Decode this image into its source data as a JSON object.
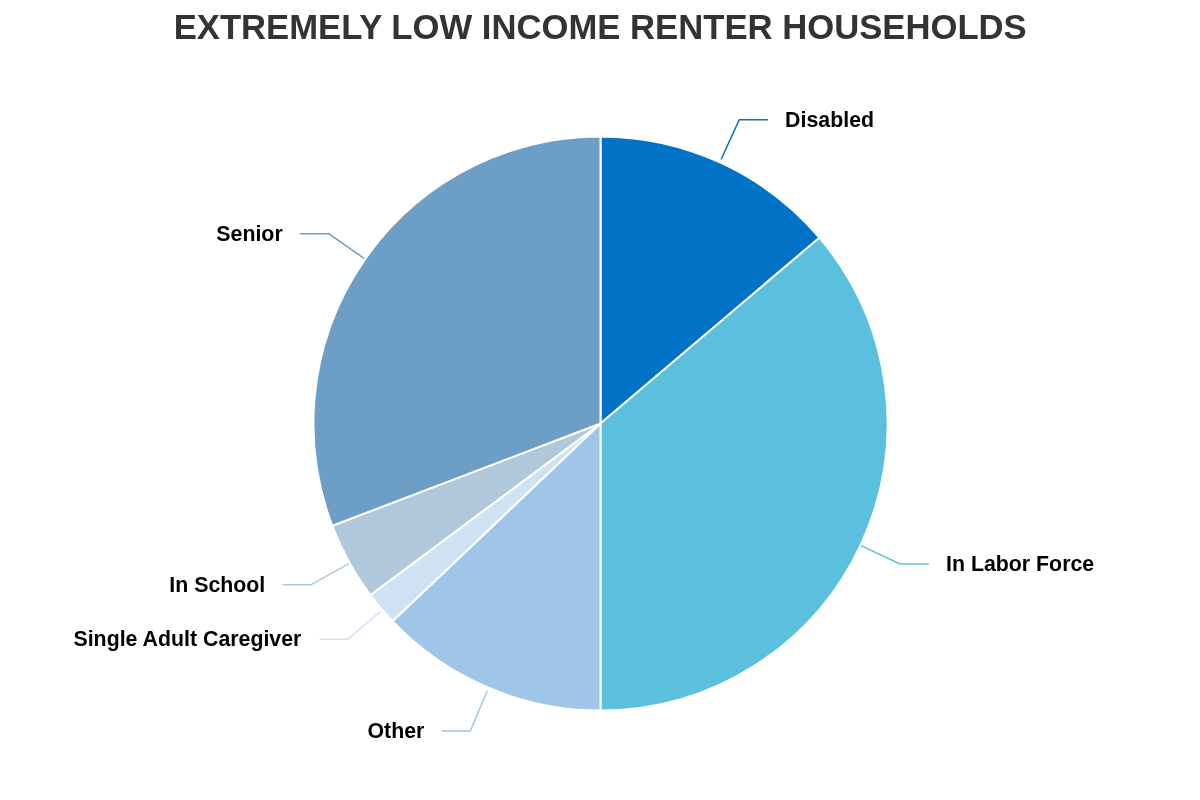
{
  "chart_data": {
    "type": "pie",
    "title": "EXTREMELY LOW INCOME RENTER HOUSEHOLDS",
    "categories": [
      "Disabled",
      "In Labor Force",
      "Other",
      "Single Adult Caregiver",
      "In School",
      "Senior"
    ],
    "values": [
      13.8,
      36.2,
      12.9,
      1.9,
      4.4,
      30.8
    ],
    "colors": [
      "#0073c6",
      "#5bc0de",
      "#9fc5e8",
      "#cfe2f3",
      "#b0c8dc",
      "#6d9ec6"
    ]
  }
}
